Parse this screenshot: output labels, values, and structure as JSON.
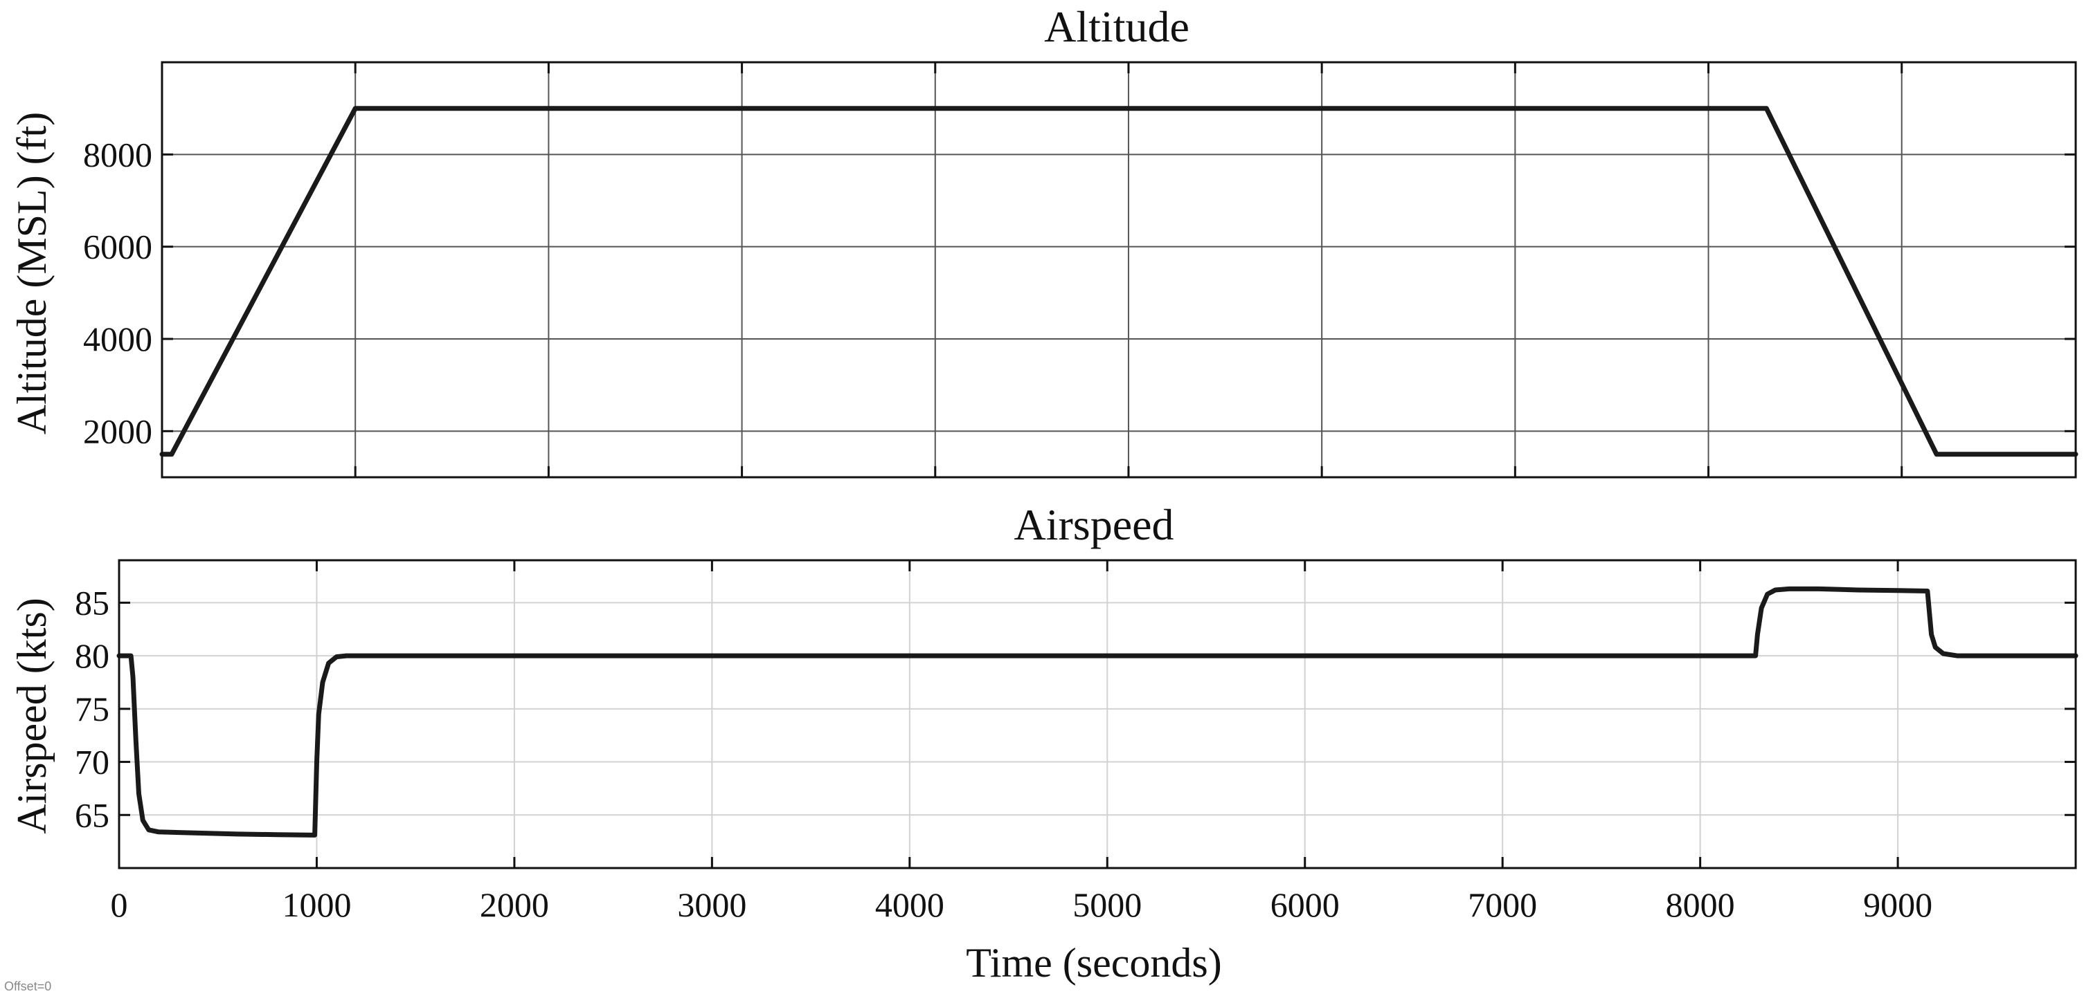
{
  "footer_note": "Offset=0",
  "colors": {
    "line": "#1a1a1a",
    "grid_top": "#555555",
    "grid_bottom": "#d2d2d2",
    "frame": "#111111"
  },
  "chart_data": [
    {
      "type": "line",
      "title": "Altitude",
      "xlabel": "",
      "ylabel": "Altitude (MSL) (ft)",
      "xlim": [
        0,
        9900
      ],
      "ylim": [
        1000,
        10000
      ],
      "grid": true,
      "x_ticks": [
        0,
        1000,
        2000,
        3000,
        4000,
        5000,
        6000,
        7000,
        8000,
        9000
      ],
      "y_ticks": [
        2000,
        4000,
        6000,
        8000
      ],
      "x_tick_labels": [],
      "y_tick_labels": [
        "2000",
        "4000",
        "6000",
        "8000"
      ],
      "series": [
        {
          "x": [
            0,
            50,
            1000,
            8300,
            9180,
            9900
          ],
          "y": [
            1500,
            1500,
            9000,
            9000,
            1500,
            1500
          ]
        }
      ]
    },
    {
      "type": "line",
      "title": "Airspeed",
      "xlabel": "Time (seconds)",
      "ylabel": "Airspeed (kts)",
      "xlim": [
        0,
        9900
      ],
      "ylim": [
        60,
        89
      ],
      "grid": true,
      "x_ticks": [
        0,
        1000,
        2000,
        3000,
        4000,
        5000,
        6000,
        7000,
        8000,
        9000
      ],
      "y_ticks": [
        65,
        70,
        75,
        80,
        85
      ],
      "x_tick_labels": [
        "0",
        "1000",
        "2000",
        "3000",
        "4000",
        "5000",
        "6000",
        "7000",
        "8000",
        "9000"
      ],
      "y_tick_labels": [
        "65",
        "70",
        "75",
        "80",
        "85"
      ],
      "series": [
        {
          "x": [
            0,
            60,
            70,
            85,
            100,
            120,
            150,
            200,
            400,
            600,
            800,
            990,
            1000,
            1010,
            1030,
            1060,
            1100,
            1150,
            8280,
            8290,
            8310,
            8340,
            8380,
            8450,
            8600,
            8800,
            9000,
            9150,
            9160,
            9170,
            9190,
            9230,
            9300,
            9500,
            9900
          ],
          "y": [
            80,
            80,
            78,
            72,
            67,
            64.5,
            63.6,
            63.4,
            63.3,
            63.2,
            63.15,
            63.1,
            70,
            74.5,
            77.5,
            79.3,
            79.9,
            80,
            80,
            82,
            84.5,
            85.8,
            86.2,
            86.3,
            86.3,
            86.2,
            86.15,
            86.1,
            84,
            82,
            80.8,
            80.2,
            80,
            80,
            80
          ]
        }
      ]
    }
  ]
}
